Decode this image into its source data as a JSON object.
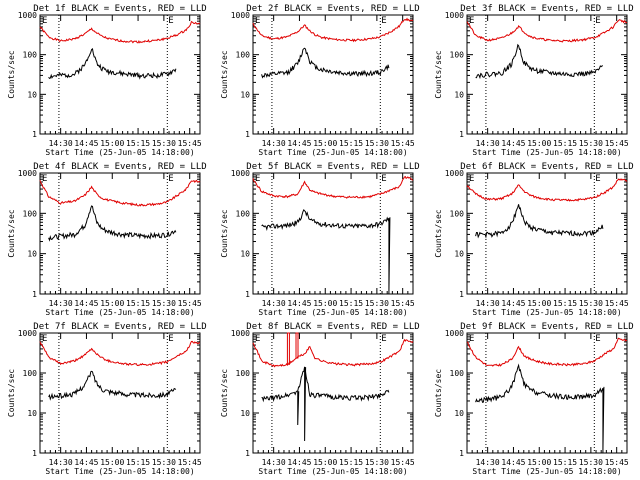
{
  "figure": {
    "x_axis_label": "Start Time (25-Jun-05 14:18:00)",
    "y_axis_label": "Counts/sec",
    "x_tick_labels": [
      "14:30",
      "14:45",
      "15:00",
      "15:15",
      "15:30",
      "15:45"
    ],
    "y_tick_labels": [
      "1",
      "10",
      "100",
      "1000"
    ],
    "corner_markers": [
      "E",
      "E"
    ],
    "colors": {
      "events": "#000000",
      "lld": "#e00000",
      "axes": "#000000",
      "background": "#ffffff"
    }
  },
  "chart_data": [
    {
      "type": "line",
      "title": "Det 1f BLACK = Events, RED = LLD",
      "detector": "1f",
      "xlabel": "Start Time (25-Jun-05 14:18:00)",
      "ylabel": "Counts/sec",
      "yscale": "log",
      "ylim": [
        1,
        1000
      ],
      "xlim_minutes_after_start": [
        0,
        93
      ],
      "vertical_markers_minutes": [
        11,
        74
      ],
      "x": [
        0,
        5,
        12,
        20,
        26,
        30,
        33,
        36,
        40,
        48,
        58,
        68,
        74,
        80,
        85,
        88,
        93
      ],
      "series": [
        {
          "name": "LLD",
          "values": [
            500,
            280,
            220,
            250,
            330,
            450,
            350,
            290,
            250,
            220,
            210,
            230,
            260,
            320,
            420,
            650,
            600
          ]
        },
        {
          "name": "Events",
          "start_minute": 5,
          "end_minute": 79,
          "values": [
            null,
            28,
            30,
            32,
            55,
            150,
            60,
            45,
            38,
            33,
            30,
            30,
            32,
            45,
            null,
            null,
            null
          ]
        }
      ]
    },
    {
      "type": "line",
      "title": "Det 2f BLACK = Events, RED = LLD",
      "detector": "2f",
      "xlabel": "Start Time (25-Jun-05 14:18:00)",
      "ylabel": "Counts/sec",
      "yscale": "log",
      "ylim": [
        1,
        1000
      ],
      "xlim_minutes_after_start": [
        0,
        93
      ],
      "vertical_markers_minutes": [
        11,
        74
      ],
      "x": [
        0,
        5,
        12,
        20,
        26,
        30,
        33,
        36,
        40,
        48,
        58,
        68,
        74,
        80,
        85,
        88,
        93
      ],
      "series": [
        {
          "name": "LLD",
          "values": [
            600,
            300,
            250,
            280,
            380,
            550,
            400,
            320,
            270,
            240,
            230,
            250,
            280,
            380,
            520,
            800,
            700
          ]
        },
        {
          "name": "Events",
          "start_minute": 5,
          "end_minute": 79,
          "values": [
            null,
            30,
            32,
            35,
            60,
            160,
            70,
            50,
            42,
            36,
            33,
            34,
            36,
            55,
            null,
            null,
            null
          ]
        }
      ]
    },
    {
      "type": "line",
      "title": "Det 3f BLACK = Events, RED = LLD",
      "detector": "3f",
      "xlabel": "Start Time (25-Jun-05 14:18:00)",
      "ylabel": "Counts/sec",
      "yscale": "log",
      "ylim": [
        1,
        1000
      ],
      "xlim_minutes_after_start": [
        0,
        93
      ],
      "vertical_markers_minutes": [
        11,
        74
      ],
      "x": [
        0,
        5,
        12,
        20,
        26,
        30,
        33,
        36,
        40,
        48,
        58,
        68,
        74,
        80,
        85,
        88,
        93
      ],
      "series": [
        {
          "name": "LLD",
          "values": [
            700,
            300,
            230,
            260,
            350,
            520,
            380,
            300,
            260,
            230,
            220,
            240,
            270,
            360,
            500,
            750,
            650
          ]
        },
        {
          "name": "Events",
          "start_minute": 5,
          "end_minute": 79,
          "values": [
            null,
            30,
            32,
            34,
            58,
            180,
            65,
            48,
            40,
            35,
            32,
            33,
            35,
            55,
            null,
            null,
            null
          ]
        }
      ]
    },
    {
      "type": "line",
      "title": "Det 4f BLACK = Events, RED = LLD",
      "detector": "4f",
      "xlabel": "Start Time (25-Jun-05 14:18:00)",
      "ylabel": "Counts/sec",
      "yscale": "log",
      "ylim": [
        1,
        1000
      ],
      "xlim_minutes_after_start": [
        0,
        93
      ],
      "vertical_markers_minutes": [
        11,
        74
      ],
      "x": [
        0,
        5,
        12,
        20,
        26,
        30,
        33,
        36,
        40,
        48,
        58,
        68,
        74,
        80,
        85,
        88,
        93
      ],
      "series": [
        {
          "name": "LLD",
          "values": [
            650,
            260,
            180,
            200,
            280,
            450,
            300,
            240,
            210,
            180,
            160,
            170,
            190,
            280,
            400,
            650,
            600
          ]
        },
        {
          "name": "Events",
          "start_minute": 5,
          "end_minute": 79,
          "values": [
            null,
            25,
            27,
            30,
            50,
            160,
            60,
            42,
            35,
            30,
            28,
            28,
            30,
            40,
            null,
            null,
            null
          ]
        }
      ]
    },
    {
      "type": "line",
      "title": "Det 5f BLACK = Events, RED = LLD",
      "detector": "5f",
      "xlabel": "Start Time (25-Jun-05 14:18:00)",
      "ylabel": "Counts/sec",
      "yscale": "log",
      "ylim": [
        1,
        1000
      ],
      "xlim_minutes_after_start": [
        0,
        93
      ],
      "vertical_markers_minutes": [
        11,
        74
      ],
      "x": [
        0,
        5,
        12,
        20,
        26,
        30,
        33,
        36,
        40,
        48,
        58,
        68,
        74,
        80,
        85,
        88,
        93
      ],
      "series": [
        {
          "name": "LLD",
          "values": [
            700,
            350,
            270,
            260,
            300,
            600,
            380,
            330,
            300,
            260,
            250,
            260,
            300,
            380,
            450,
            800,
            700
          ]
        },
        {
          "name": "Events",
          "start_minute": 5,
          "end_minute": 79,
          "values": [
            null,
            45,
            48,
            50,
            60,
            120,
            70,
            60,
            55,
            50,
            48,
            50,
            55,
            80,
            null,
            null,
            null
          ],
          "dropout": {
            "at_minute": 79,
            "down_to": 1,
            "back_to": 80
          }
        }
      ]
    },
    {
      "type": "line",
      "title": "Det 6f BLACK = Events, RED = LLD",
      "detector": "6f",
      "xlabel": "Start Time (25-Jun-05 14:18:00)",
      "ylabel": "Counts/sec",
      "yscale": "log",
      "ylim": [
        1,
        1000
      ],
      "xlim_minutes_after_start": [
        0,
        93
      ],
      "vertical_markers_minutes": [
        11,
        74
      ],
      "x": [
        0,
        5,
        12,
        20,
        26,
        30,
        33,
        36,
        40,
        48,
        58,
        68,
        74,
        80,
        85,
        88,
        93
      ],
      "series": [
        {
          "name": "LLD",
          "values": [
            500,
            300,
            220,
            230,
            300,
            500,
            360,
            290,
            250,
            220,
            210,
            220,
            250,
            330,
            450,
            700,
            650
          ]
        },
        {
          "name": "Events",
          "start_minute": 5,
          "end_minute": 79,
          "values": [
            null,
            30,
            30,
            32,
            55,
            170,
            65,
            48,
            40,
            34,
            32,
            32,
            34,
            50,
            null,
            null,
            null
          ]
        }
      ]
    },
    {
      "type": "line",
      "title": "Det 7f BLACK = Events, RED = LLD",
      "detector": "7f",
      "xlabel": "Start Time (25-Jun-05 14:18:00)",
      "ylabel": "Counts/sec",
      "yscale": "log",
      "ylim": [
        1,
        1000
      ],
      "xlim_minutes_after_start": [
        0,
        93
      ],
      "vertical_markers_minutes": [
        11,
        74
      ],
      "x": [
        0,
        5,
        12,
        20,
        26,
        30,
        33,
        36,
        40,
        48,
        58,
        68,
        74,
        80,
        85,
        88,
        93
      ],
      "series": [
        {
          "name": "LLD",
          "values": [
            600,
            250,
            170,
            200,
            280,
            400,
            300,
            240,
            200,
            170,
            160,
            170,
            190,
            270,
            350,
            600,
            550
          ]
        },
        {
          "name": "Events",
          "start_minute": 5,
          "end_minute": 79,
          "values": [
            null,
            25,
            27,
            30,
            50,
            110,
            55,
            40,
            35,
            30,
            28,
            28,
            30,
            40,
            null,
            null,
            null
          ]
        }
      ]
    },
    {
      "type": "line",
      "title": "Det 8f BLACK = Events, RED = LLD",
      "detector": "8f",
      "xlabel": "Start Time (25-Jun-05 14:18:00)",
      "ylabel": "Counts/sec",
      "yscale": "log",
      "ylim": [
        1,
        1000
      ],
      "xlim_minutes_after_start": [
        0,
        93
      ],
      "vertical_markers_minutes": [
        11,
        74
      ],
      "x": [
        0,
        5,
        12,
        20,
        26,
        30,
        33,
        36,
        40,
        48,
        58,
        68,
        74,
        80,
        85,
        88,
        93
      ],
      "series": [
        {
          "name": "LLD",
          "values": [
            600,
            200,
            150,
            160,
            250,
            300,
            450,
            240,
            200,
            170,
            160,
            170,
            190,
            260,
            350,
            650,
            600
          ],
          "spikes": [
            {
              "at_minute": 20,
              "up_to": 1000
            },
            {
              "at_minute": 25,
              "up_to": 1000
            }
          ]
        },
        {
          "name": "Events",
          "start_minute": 5,
          "end_minute": 79,
          "values": [
            null,
            22,
            24,
            28,
            35,
            140,
            30,
            28,
            27,
            25,
            24,
            25,
            28,
            40,
            null,
            null,
            null
          ],
          "dropouts": [
            {
              "at_minute": 26,
              "down_to": 5
            },
            {
              "at_minute": 30,
              "down_to": 2
            }
          ]
        }
      ]
    },
    {
      "type": "line",
      "title": "Det 9f BLACK = Events, RED = LLD",
      "detector": "9f",
      "xlabel": "Start Time (25-Jun-05 14:18:00)",
      "ylabel": "Counts/sec",
      "yscale": "log",
      "ylim": [
        1,
        1000
      ],
      "xlim_minutes_after_start": [
        0,
        93
      ],
      "vertical_markers_minutes": [
        11,
        74
      ],
      "x": [
        0,
        5,
        12,
        20,
        26,
        30,
        33,
        36,
        40,
        48,
        58,
        68,
        74,
        80,
        85,
        88,
        93
      ],
      "series": [
        {
          "name": "LLD",
          "values": [
            600,
            250,
            150,
            160,
            220,
            450,
            280,
            230,
            200,
            170,
            160,
            170,
            200,
            300,
            400,
            700,
            650
          ]
        },
        {
          "name": "Events",
          "start_minute": 5,
          "end_minute": 79,
          "values": [
            null,
            20,
            22,
            25,
            45,
            150,
            55,
            40,
            33,
            28,
            25,
            26,
            28,
            45,
            null,
            null,
            null
          ],
          "dropout": {
            "at_minute": 79,
            "down_to": 1,
            "back_to": 45
          }
        }
      ]
    }
  ]
}
